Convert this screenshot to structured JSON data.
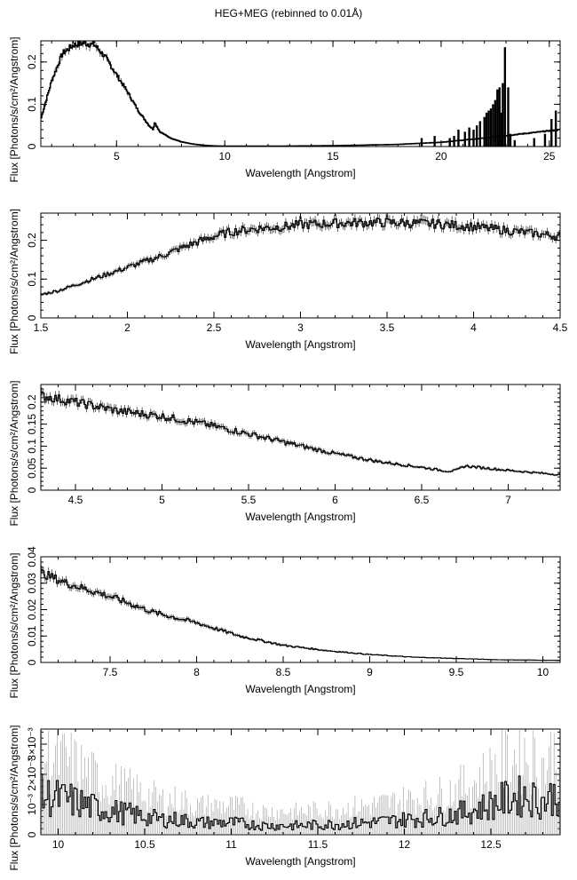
{
  "page_title": "HEG+MEG (rebinned to 0.01Å)",
  "chart_data": [
    {
      "type": "line",
      "xlabel": "Wavelength [Angstrom]",
      "ylabel": "Flux [Photons/s/cm²/Angstrom]",
      "xlim": [
        1.5,
        25.5
      ],
      "ylim": [
        0,
        0.25
      ],
      "xticks": [
        5,
        10,
        15,
        20,
        25
      ],
      "xtick_labels": [
        "5",
        "10",
        "15",
        "20",
        "25"
      ],
      "yticks": [
        0,
        0.1,
        0.2
      ],
      "ytick_labels": [
        "0",
        "0.1",
        "0.2"
      ],
      "grid": false,
      "series": [
        {
          "x": [
            1.5,
            2,
            2.5,
            3,
            3.5,
            4,
            4.5,
            5,
            5.5,
            6,
            6.5,
            6.7,
            6.75,
            7,
            7.5,
            8,
            8.5,
            9,
            9.5,
            10,
            12,
            15,
            18,
            20,
            22,
            25.5
          ],
          "y": [
            0.065,
            0.155,
            0.22,
            0.24,
            0.245,
            0.24,
            0.21,
            0.17,
            0.13,
            0.085,
            0.05,
            0.04,
            0.058,
            0.035,
            0.02,
            0.011,
            0.006,
            0.003,
            0.0015,
            0.001,
            0.0008,
            0.002,
            0.005,
            0.01,
            0.02,
            0.04
          ]
        }
      ],
      "spikes": {
        "x": [
          19.1,
          19.7,
          20.4,
          20.6,
          20.8,
          21.1,
          21.3,
          21.5,
          21.65,
          21.8,
          22.0,
          22.1,
          22.2,
          22.3,
          22.4,
          22.5,
          22.6,
          22.7,
          22.8,
          22.85,
          22.95,
          23.1,
          23.2,
          23.4,
          24.3,
          24.8,
          25.1,
          25.3
        ],
        "y": [
          0.02,
          0.025,
          0.02,
          0.025,
          0.04,
          0.035,
          0.045,
          0.04,
          0.05,
          0.06,
          0.07,
          0.08,
          0.085,
          0.09,
          0.1,
          0.11,
          0.135,
          0.14,
          0.08,
          0.15,
          0.235,
          0.14,
          0.03,
          0.015,
          0.02,
          0.03,
          0.065,
          0.085
        ]
      }
    },
    {
      "type": "line",
      "xlabel": "Wavelength [Angstrom]",
      "ylabel": "Flux [Photons/s/cm²/Angstrom]",
      "xlim": [
        1.5,
        4.5
      ],
      "ylim": [
        0,
        0.27
      ],
      "xticks": [
        1.5,
        2,
        2.5,
        3,
        3.5,
        4,
        4.5
      ],
      "xtick_labels": [
        "1.5",
        "2",
        "2.5",
        "3",
        "3.5",
        "4",
        "4.5"
      ],
      "yticks": [
        0,
        0.1,
        0.2
      ],
      "ytick_labels": [
        "0",
        "0.1",
        "0.2"
      ],
      "grid": false,
      "series": [
        {
          "x": [
            1.5,
            1.6,
            1.7,
            1.8,
            1.9,
            2.0,
            2.1,
            2.2,
            2.3,
            2.4,
            2.5,
            2.6,
            2.7,
            2.8,
            2.9,
            3.0,
            3.2,
            3.4,
            3.6,
            3.8,
            4.0,
            4.2,
            4.4,
            4.5
          ],
          "y": [
            0.06,
            0.07,
            0.085,
            0.1,
            0.115,
            0.13,
            0.145,
            0.16,
            0.178,
            0.195,
            0.21,
            0.222,
            0.228,
            0.232,
            0.235,
            0.24,
            0.244,
            0.246,
            0.245,
            0.242,
            0.235,
            0.225,
            0.215,
            0.21
          ]
        }
      ]
    },
    {
      "type": "line",
      "xlabel": "Wavelength [Angstrom]",
      "ylabel": "Flux [Photons/s/cm²/Angstrom]",
      "xlim": [
        4.3,
        7.3
      ],
      "ylim": [
        0,
        0.24
      ],
      "xticks": [
        4.5,
        5,
        5.5,
        6,
        6.5,
        7
      ],
      "xtick_labels": [
        "4.5",
        "5",
        "5.5",
        "6",
        "6.5",
        "7"
      ],
      "yticks": [
        0,
        0.05,
        0.1,
        0.15,
        0.2
      ],
      "ytick_labels": [
        "0",
        "0.05",
        "0.1",
        "0.15",
        "0.2"
      ],
      "grid": false,
      "series": [
        {
          "x": [
            4.3,
            4.5,
            4.75,
            5.0,
            5.25,
            5.5,
            5.75,
            6.0,
            6.25,
            6.5,
            6.65,
            6.7,
            6.75,
            7.0,
            7.3
          ],
          "y": [
            0.215,
            0.2,
            0.18,
            0.168,
            0.15,
            0.128,
            0.105,
            0.083,
            0.065,
            0.052,
            0.043,
            0.045,
            0.055,
            0.045,
            0.035
          ]
        }
      ]
    },
    {
      "type": "line",
      "xlabel": "Wavelength [Angstrom]",
      "ylabel": "Flux [Photons/s/cm²/Angstrom]",
      "xlim": [
        7.1,
        10.1
      ],
      "ylim": [
        0,
        0.04
      ],
      "xticks": [
        7.5,
        8,
        8.5,
        9,
        9.5,
        10
      ],
      "xtick_labels": [
        "7.5",
        "8",
        "8.5",
        "9",
        "9.5",
        "10"
      ],
      "yticks": [
        0,
        0.01,
        0.02,
        0.03,
        0.04
      ],
      "ytick_labels": [
        "0",
        "0.01",
        "0.02",
        "0.03",
        "0.04"
      ],
      "grid": false,
      "series": [
        {
          "x": [
            7.1,
            7.25,
            7.5,
            7.75,
            8.0,
            8.25,
            8.5,
            8.75,
            9.0,
            9.25,
            9.5,
            9.75,
            10.1
          ],
          "y": [
            0.034,
            0.03,
            0.025,
            0.019,
            0.015,
            0.01,
            0.0065,
            0.0045,
            0.003,
            0.002,
            0.0015,
            0.001,
            0.0008
          ]
        }
      ]
    },
    {
      "type": "line",
      "xlabel": "Wavelength [Angstrom]",
      "ylabel": "Flux [Photons/s/cm²/Angstrom]",
      "xlim": [
        9.9,
        12.9
      ],
      "ylim": [
        0,
        0.0035
      ],
      "xticks": [
        10,
        10.5,
        11,
        11.5,
        12,
        12.5
      ],
      "xtick_labels": [
        "10",
        "10.5",
        "11",
        "11.5",
        "12",
        "12.5"
      ],
      "yticks": [
        0,
        0.001,
        0.002,
        0.003
      ],
      "ytick_labels": [
        "0",
        "10⁻³",
        "2×10⁻³",
        "3×10⁻³"
      ],
      "grid": false,
      "series": [
        {
          "x": [
            9.9,
            10.0,
            10.1,
            10.2,
            10.3,
            10.4,
            10.5,
            10.6,
            10.7,
            10.8,
            10.9,
            11.0,
            11.2,
            11.4,
            11.6,
            11.8,
            12.0,
            12.2,
            12.4,
            12.5,
            12.6,
            12.7,
            12.8,
            12.9
          ],
          "y": [
            0.0013,
            0.0012,
            0.0011,
            0.0009,
            0.0008,
            0.0007,
            0.0006,
            0.0005,
            0.0005,
            0.0004,
            0.0004,
            0.0004,
            0.0003,
            0.0003,
            0.00035,
            0.0004,
            0.0005,
            0.0006,
            0.0008,
            0.001,
            0.0012,
            0.0013,
            0.0011,
            0.0014
          ]
        }
      ]
    }
  ]
}
